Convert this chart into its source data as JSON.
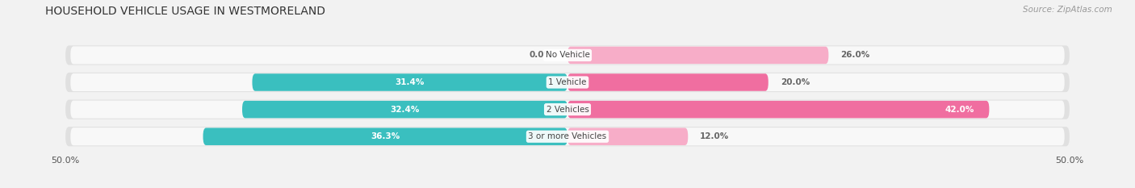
{
  "title": "HOUSEHOLD VEHICLE USAGE IN WESTMORELAND",
  "source": "Source: ZipAtlas.com",
  "categories": [
    "No Vehicle",
    "1 Vehicle",
    "2 Vehicles",
    "3 or more Vehicles"
  ],
  "owner_values": [
    0.0,
    31.4,
    32.4,
    36.3
  ],
  "renter_values": [
    26.0,
    20.0,
    42.0,
    12.0
  ],
  "owner_color": "#3abfbf",
  "renter_color_bright": "#f06ea0",
  "renter_color_light": "#f7adc8",
  "background_color": "#f2f2f2",
  "bar_bg_color": "#e8e8e8",
  "bar_bg_color2": "#ffffff",
  "title_fontsize": 10,
  "source_fontsize": 7.5,
  "axis_max": 50.0
}
